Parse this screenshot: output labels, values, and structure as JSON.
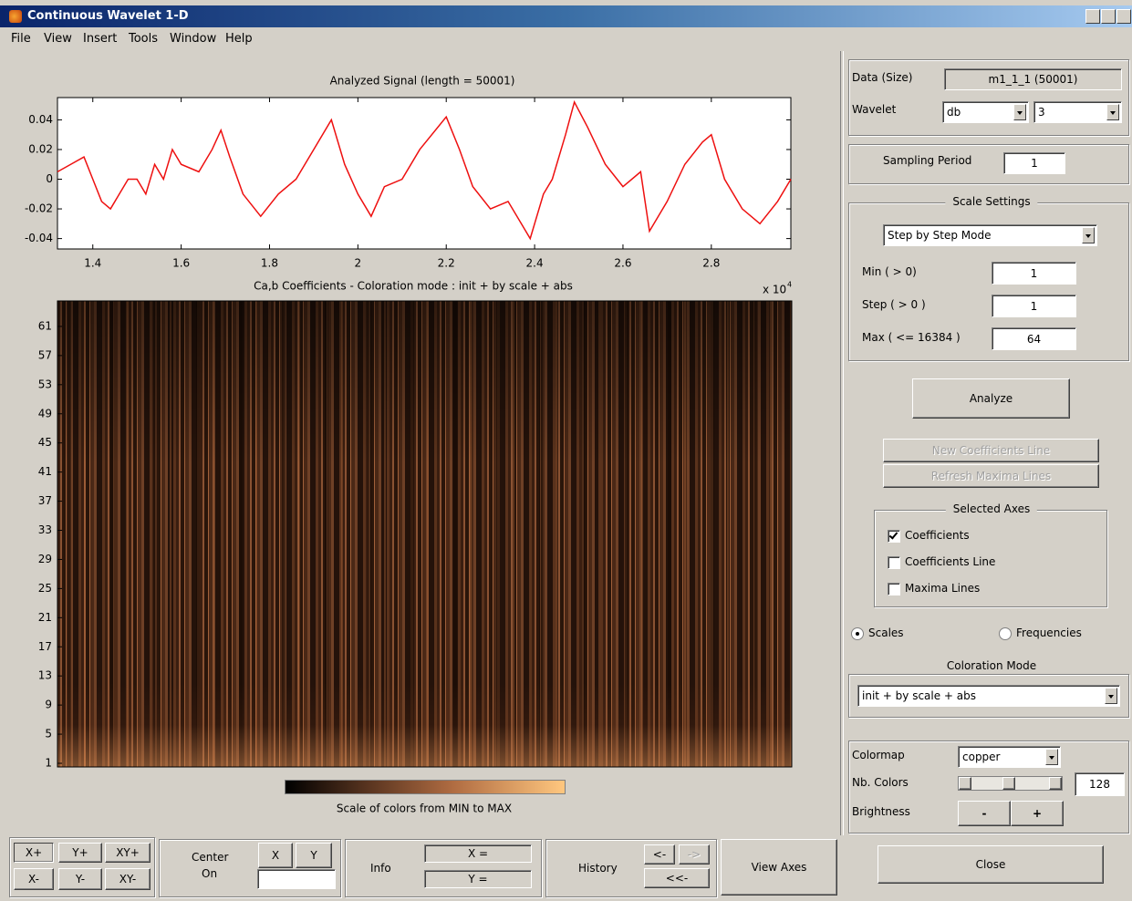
{
  "window": {
    "title": "Continuous Wavelet 1-D"
  },
  "menu": [
    "File",
    "View",
    "Insert",
    "Tools",
    "Window",
    "Help"
  ],
  "signal_plot": {
    "type": "line",
    "title": "Analyzed Signal  (length = 50001)",
    "color": "#ee1010",
    "x": [
      13200,
      13500,
      13800,
      14000,
      14200,
      14400,
      14600,
      14800,
      15000,
      15200,
      15400,
      15600,
      15800,
      16000,
      16400,
      16700,
      16900,
      17100,
      17400,
      17800,
      18200,
      18600,
      19000,
      19400,
      19700,
      20000,
      20300,
      20600,
      21000,
      21400,
      22000,
      22300,
      22600,
      23000,
      23400,
      23900,
      24200,
      24400,
      24700,
      24900,
      25200,
      25600,
      26000,
      26400,
      26600,
      27000,
      27400,
      27800,
      28000,
      28300,
      28700,
      29100,
      29500,
      29800
    ],
    "values": [
      0.005,
      0.01,
      0.015,
      0.0,
      -0.015,
      -0.02,
      -0.01,
      0.0,
      0.0,
      -0.01,
      0.01,
      0.0,
      0.02,
      0.01,
      0.005,
      0.02,
      0.033,
      0.015,
      -0.01,
      -0.025,
      -0.01,
      0.0,
      0.02,
      0.04,
      0.01,
      -0.01,
      -0.025,
      -0.005,
      0.0,
      0.02,
      0.042,
      0.02,
      -0.005,
      -0.02,
      -0.015,
      -0.04,
      -0.01,
      0.0,
      0.03,
      0.052,
      0.035,
      0.01,
      -0.005,
      0.005,
      -0.035,
      -0.015,
      0.01,
      0.025,
      0.03,
      0.0,
      -0.02,
      -0.03,
      -0.015,
      0.0
    ],
    "xlim": [
      13200,
      29800
    ],
    "xticks": [
      {
        "value": 14000,
        "label": "1.4"
      },
      {
        "value": 16000,
        "label": "1.6"
      },
      {
        "value": 18000,
        "label": "1.8"
      },
      {
        "value": 20000,
        "label": "2"
      },
      {
        "value": 22000,
        "label": "2.2"
      },
      {
        "value": 24000,
        "label": "2.4"
      },
      {
        "value": 26000,
        "label": "2.6"
      },
      {
        "value": 28000,
        "label": "2.8"
      }
    ],
    "ylim": [
      -0.047,
      0.055
    ],
    "yticks": [
      0.04,
      0.02,
      0,
      -0.02,
      -0.04
    ],
    "x_scale": "x 10",
    "x_scale_exponent": "4"
  },
  "coef_plot": {
    "title": "Ca,b Coefficients  - Coloration mode : init + by scale + abs",
    "ylim": [
      0.5,
      64.5
    ],
    "yticks": [
      61,
      57,
      53,
      49,
      45,
      41,
      37,
      33,
      29,
      25,
      21,
      17,
      13,
      9,
      5,
      1
    ]
  },
  "colorbar": {
    "label": "Scale of colors from MIN to MAX"
  },
  "panel": {
    "data_label": "Data  (Size)",
    "data_value": "m1_1_1  (50001)",
    "wavelet_label": "Wavelet",
    "wavelet_family": "db",
    "wavelet_number": "3",
    "sampling_label": "Sampling Period",
    "sampling_value": 1,
    "scale_title": "Scale Settings",
    "scale_mode": "Step by Step Mode",
    "min_label": "Min  ( > 0)",
    "min_value": 1,
    "step_label": "Step ( > 0 )",
    "step_value": 1,
    "max_label": "Max  ( <= 16384 )",
    "max_value": 64,
    "analyze": "Analyze",
    "new_line": "New Coefficients Line",
    "refresh": "Refresh Maxima Lines",
    "axes_title": "Selected Axes",
    "axes": [
      {
        "label": "Coefficients",
        "checked": true
      },
      {
        "label": "Coefficients Line",
        "checked": false
      },
      {
        "label": "Maxima Lines",
        "checked": false
      }
    ],
    "modes": [
      {
        "label": "Scales",
        "checked": true
      },
      {
        "label": "Frequencies",
        "checked": false
      }
    ],
    "coloration_title": "Coloration Mode",
    "coloration_value": "init + by scale + abs",
    "colormap_label": "Colormap",
    "colormap_value": "copper",
    "nb_colors_label": "Nb. Colors",
    "nb_colors_value": 128,
    "brightness_label": "Brightness",
    "brightness_minus": "-",
    "brightness_plus": "+",
    "close": "Close"
  },
  "toolbar": {
    "zoom": [
      "X+",
      "Y+",
      "XY+",
      "X-",
      "Y-",
      "XY-"
    ],
    "center": [
      "Center",
      "On"
    ],
    "center_buttons": [
      "X",
      "Y"
    ],
    "info": "Info",
    "info_fields": [
      "X =",
      "Y ="
    ],
    "history": "History",
    "history_buttons": [
      "<-",
      "->",
      "<<-"
    ],
    "view_axes": "View Axes"
  }
}
